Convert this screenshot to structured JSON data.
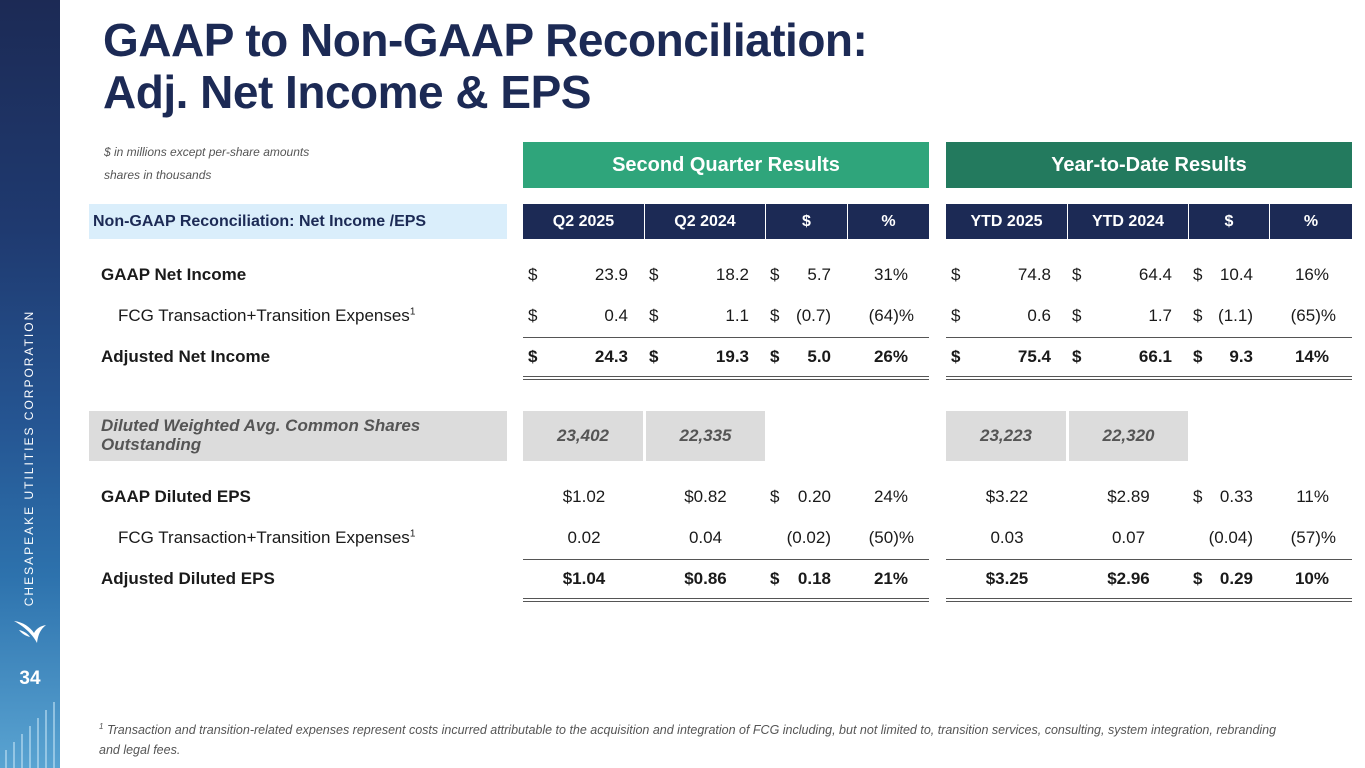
{
  "sidebar": {
    "company": "CHESAPEAKE UTILITIES CORPORATION",
    "page_number": "34",
    "logo_icon": "bird-logo-icon"
  },
  "title": {
    "line1": "GAAP to Non-GAAP Reconciliation:",
    "line2": "Adj. Net Income & EPS"
  },
  "notes": {
    "units": "$ in millions except per-share amounts",
    "shares": "shares in thousands"
  },
  "groups": {
    "quarter": "Second Quarter Results",
    "ytd": "Year-to-Date Results",
    "quarter_color": "#2fa57b",
    "ytd_color": "#237a5e"
  },
  "table_title": "Non-GAAP Reconciliation: Net Income /EPS",
  "columns": [
    "Q2 2025",
    "Q2 2024",
    "$",
    "%",
    "YTD 2025",
    "YTD 2024",
    "$",
    "%"
  ],
  "net_income_rows": [
    {
      "label": "GAAP Net Income",
      "sup": "",
      "q1": "23.9",
      "q2": "18.2",
      "qd": "5.7",
      "qp": "31%",
      "y1": "74.8",
      "y2": "64.4",
      "yd": "10.4",
      "yp": "16%"
    },
    {
      "label": "FCG Transaction+Transition Expenses",
      "sup": "1",
      "q1": "0.4",
      "q2": "1.1",
      "qd": "(0.7)",
      "qp": "(64)%",
      "y1": "0.6",
      "y2": "1.7",
      "yd": "(1.1)",
      "yp": "(65)%"
    },
    {
      "label": "Adjusted Net Income",
      "sup": "",
      "q1": "24.3",
      "q2": "19.3",
      "qd": "5.0",
      "qp": "26%",
      "y1": "75.4",
      "y2": "66.1",
      "yd": "9.3",
      "yp": "14%"
    }
  ],
  "currency_symbol": "$",
  "shares": {
    "label": "Diluted Weighted Avg. Common Shares Outstanding",
    "q1": "23,402",
    "q2": "22,335",
    "y1": "23,223",
    "y2": "22,320"
  },
  "eps_rows": [
    {
      "label": "GAAP Diluted EPS",
      "sup": "",
      "q1": "$1.02",
      "q2": "$0.82",
      "qd_sym": "$",
      "qd": "0.20",
      "qp": "24%",
      "y1": "$3.22",
      "y2": "$2.89",
      "yd_sym": "$",
      "yd": "0.33",
      "yp": "11%"
    },
    {
      "label": "FCG Transaction+Transition Expenses",
      "sup": "1",
      "q1": "0.02",
      "q2": "0.04",
      "qd_sym": "",
      "qd": "(0.02)",
      "qp": "(50)%",
      "y1": "0.03",
      "y2": "0.07",
      "yd_sym": "",
      "yd": "(0.04)",
      "yp": "(57)%"
    },
    {
      "label": "Adjusted Diluted EPS",
      "sup": "",
      "q1": "$1.04",
      "q2": "$0.86",
      "qd_sym": "$",
      "qd": "0.18",
      "qp": "21%",
      "y1": "$3.25",
      "y2": "$2.96",
      "yd_sym": "$",
      "yd": "0.29",
      "yp": "10%"
    }
  ],
  "footnote": {
    "marker": "1",
    "text": "Transaction and transition-related expenses represent costs incurred attributable to the acquisition and integration of FCG including, but not limited to, transition services, consulting, system integration, rebranding and legal fees."
  }
}
